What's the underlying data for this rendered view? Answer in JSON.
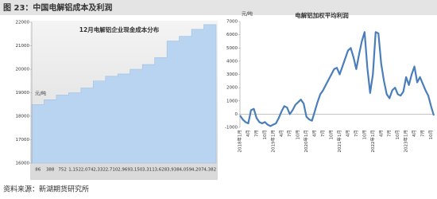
{
  "header": {
    "title": "图 23：中国电解铝成本及利润"
  },
  "footer": {
    "source": "资料来源：新湖期货研究所"
  },
  "chart_data": [
    {
      "type": "area",
      "title": "12月电解铝企业现金成本分布",
      "y_label": "元/吨",
      "color": "#b8d4f0",
      "categories": [
        "86",
        "388",
        "752",
        "1,152",
        "2,074",
        "2,332",
        "2,710",
        "2,969",
        "3,150",
        "3,311",
        "3,628",
        "3,938",
        "4,059",
        "4,207",
        "4,382"
      ],
      "values": [
        18500,
        18700,
        18900,
        19000,
        19200,
        19500,
        19700,
        19800,
        20000,
        20200,
        20500,
        21200,
        21400,
        21700,
        21900
      ],
      "ylim": [
        16000,
        22000
      ],
      "yticks": [
        16000,
        17000,
        18000,
        19000,
        20000,
        21000,
        22000
      ]
    },
    {
      "type": "line",
      "title": "电解铝加权平均利润",
      "y_label": "元/吨",
      "color": "#4a7ebb",
      "categories": [
        "2018年1月",
        null,
        null,
        "4月",
        null,
        null,
        "7月",
        null,
        null,
        "10月",
        null,
        null,
        "2019年1月",
        null,
        null,
        "4月",
        null,
        null,
        "7月",
        null,
        null,
        "10月",
        null,
        null,
        "2020年1月",
        null,
        null,
        "4月",
        null,
        null,
        "7月",
        null,
        null,
        "10月",
        null,
        null,
        "2021年1月",
        null,
        null,
        "4月",
        null,
        null,
        "7月",
        null,
        null,
        "10月",
        null,
        null,
        "2022年1月",
        null,
        null,
        "4月",
        null,
        null,
        "7月",
        null,
        null,
        "10月",
        null,
        null,
        "2023年1月",
        null,
        null,
        "4月",
        null,
        null,
        "7月",
        null,
        null,
        "10月",
        null
      ],
      "values": [
        -100,
        -400,
        -600,
        -700,
        300,
        400,
        -300,
        -600,
        -700,
        -600,
        -800,
        -900,
        -800,
        -700,
        -300,
        200,
        600,
        500,
        0,
        300,
        700,
        900,
        1100,
        800,
        -200,
        -400,
        -500,
        200,
        900,
        1500,
        1800,
        2200,
        2600,
        3000,
        3400,
        3500,
        3000,
        3600,
        4200,
        4800,
        5000,
        4300,
        3400,
        4500,
        5500,
        6200,
        3500,
        1600,
        3000,
        6200,
        6100,
        3800,
        2500,
        1500,
        1200,
        1800,
        2000,
        1500,
        1400,
        1700,
        2800,
        2200,
        3000,
        3600,
        2400,
        2800,
        2300,
        1800,
        1400,
        600,
        -100
      ],
      "ylim": [
        -1000,
        7000
      ],
      "yticks": [
        -1000,
        0,
        1000,
        2000,
        3000,
        4000,
        5000,
        6000,
        7000
      ]
    }
  ]
}
